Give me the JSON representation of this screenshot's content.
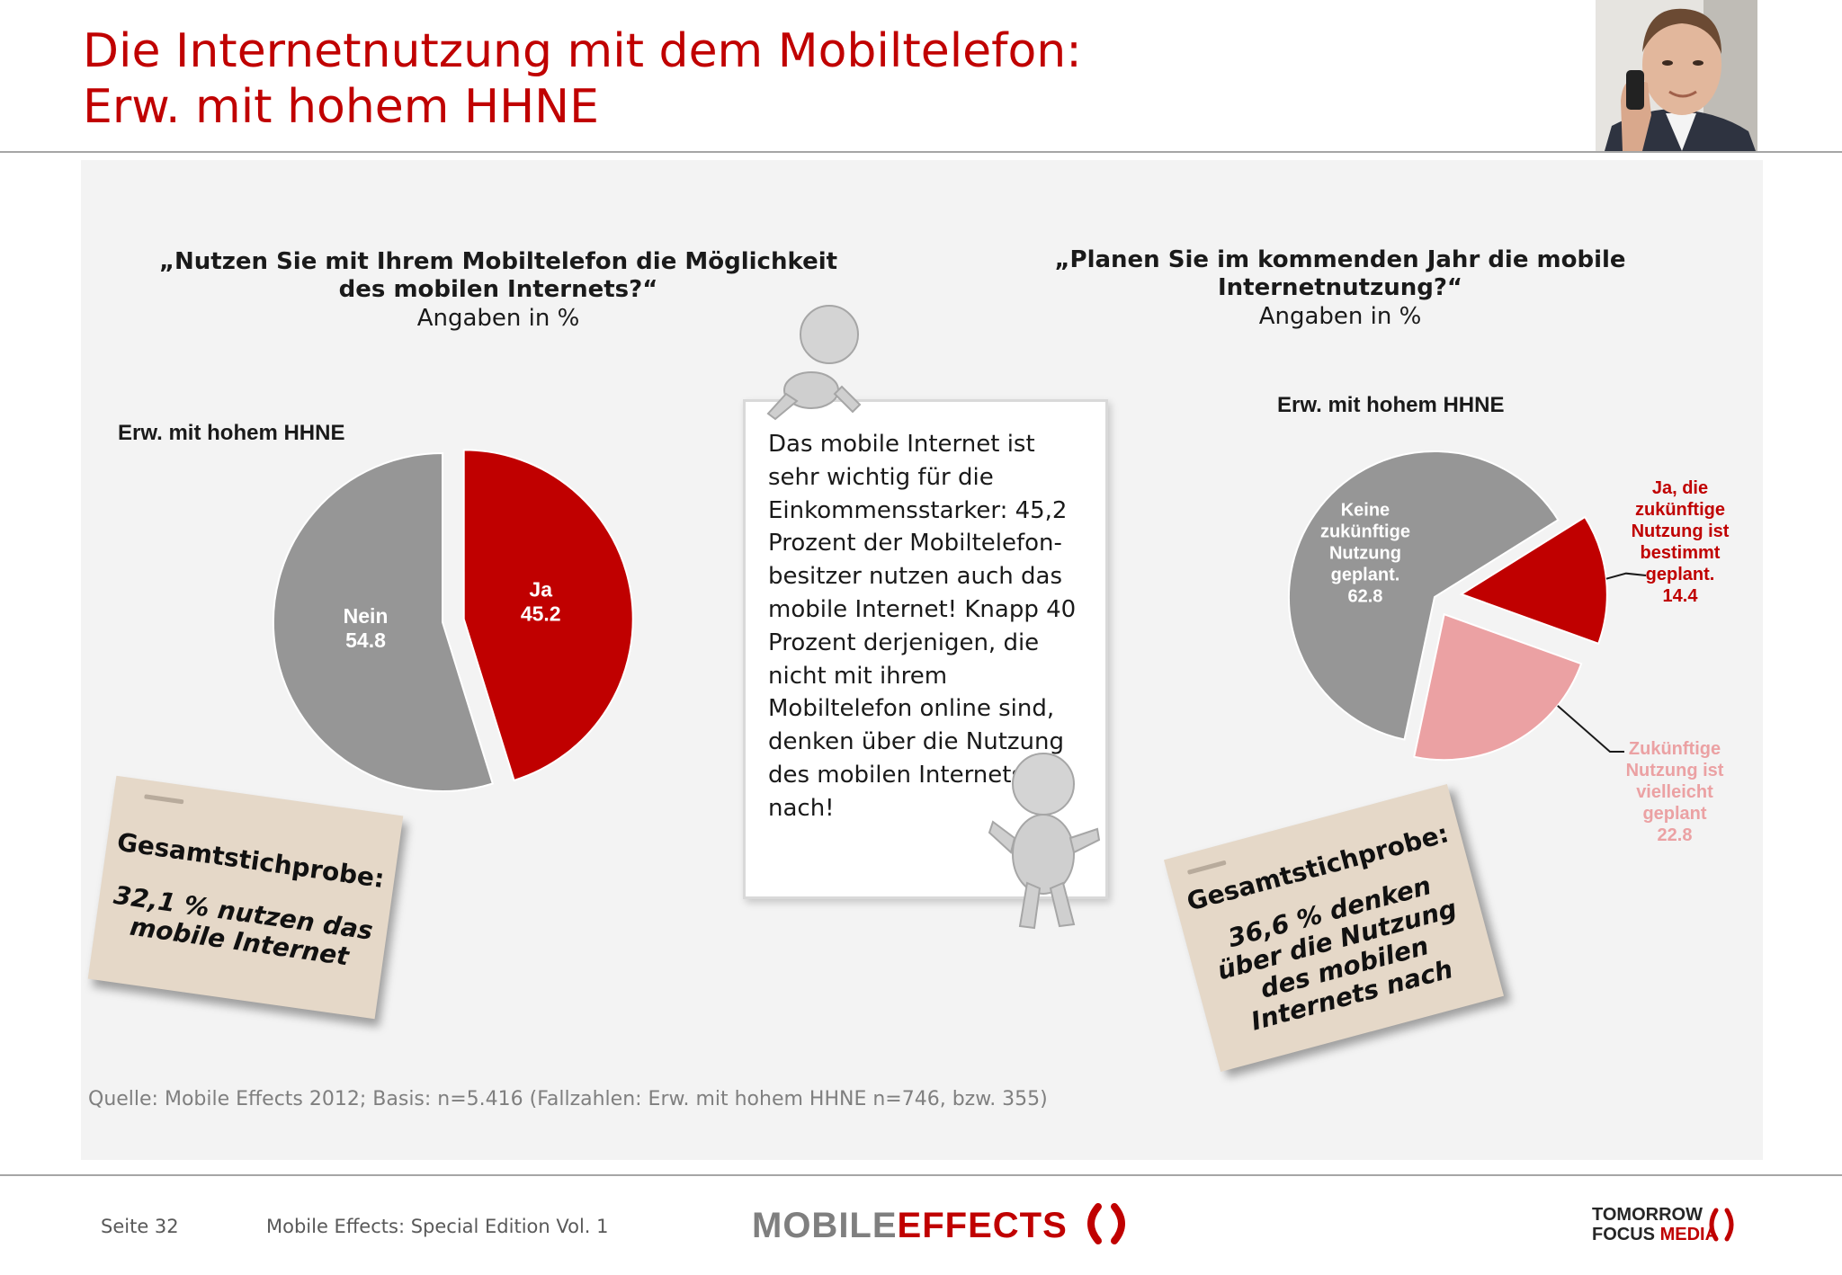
{
  "title": {
    "line1": "Die Internetnutzung mit dem Mobiltelefon:",
    "line2": "Erw. mit hohem HHNE"
  },
  "left": {
    "question_line1": "„Nutzen Sie mit Ihrem Mobiltelefon die Möglichkeit",
    "question_line2": "des mobilen Internets?“",
    "unit": "Angaben in %",
    "segment": "Erw. mit hohem HHNE",
    "note_head": "Gesamtstichprobe:",
    "note_line1": "32,1 % nutzen das",
    "note_line2": "mobile Internet"
  },
  "right": {
    "question_line1": "„Planen Sie im kommenden Jahr die mobile",
    "question_line2": "Internetnutzung?“",
    "unit": "Angaben in %",
    "segment": "Erw. mit hohem HHNE",
    "note_head": "Gesamtstichprobe:",
    "note_line1": "36,6 % denken",
    "note_line2": "über die Nutzung",
    "note_line3": "des mobilen",
    "note_line4": "Internets nach"
  },
  "center_text": "Das mobile Internet ist sehr wichtig für die Einkommensstarker: 45,2 Prozent der Mobiltelefon-besitzer nutzen auch das mobile Internet! Knapp 40 Prozent derjenigen, die nicht mit ihrem Mobiltelefon online sind, denken über die Nutzung des mobilen Internets nach!",
  "chart_data": [
    {
      "type": "pie",
      "title": "Erw. mit hohem HHNE",
      "slices": [
        {
          "label": "Ja",
          "value": 45.2,
          "color": "#c00000",
          "exploded": true
        },
        {
          "label": "Nein",
          "value": 54.8,
          "color": "#969696",
          "exploded": false
        }
      ]
    },
    {
      "type": "pie",
      "title": "Erw. mit hohem HHNE",
      "slices": [
        {
          "label": "Ja, die zukünftige Nutzung ist bestimmt geplant.",
          "label_lines": [
            "Ja, die",
            "zukünftige",
            "Nutzung ist",
            "bestimmt",
            "geplant."
          ],
          "value": 14.4,
          "color": "#c00000",
          "label_color": "#c00000"
        },
        {
          "label": "Zukünftige Nutzung ist vielleicht geplant",
          "label_lines": [
            "Zukünftige",
            "Nutzung ist",
            "vielleicht",
            "geplant"
          ],
          "value": 22.8,
          "color": "#eba1a3",
          "label_color": "#eba1a3"
        },
        {
          "label": "Keine zukünftige Nutzung geplant.",
          "label_lines": [
            "Keine",
            "zukünftige",
            "Nutzung",
            "geplant."
          ],
          "value": 62.8,
          "color": "#969696",
          "label_color": "#ffffff"
        }
      ]
    }
  ],
  "source": "Quelle: Mobile Effects 2012; Basis: n=5.416 (Fallzahlen: Erw. mit hohem HHNE n=746, bzw. 355)",
  "footer": {
    "page": "Seite 32",
    "edition": "Mobile Effects: Special Edition Vol. 1"
  },
  "logos": {
    "mobile_effects": {
      "part1": "MOBILE",
      "part2": "EFFECTS"
    },
    "tomorrow_focus": {
      "line1": "TOMORROW",
      "line2a": "FOCUS",
      "line2b": "MEDIA"
    }
  }
}
